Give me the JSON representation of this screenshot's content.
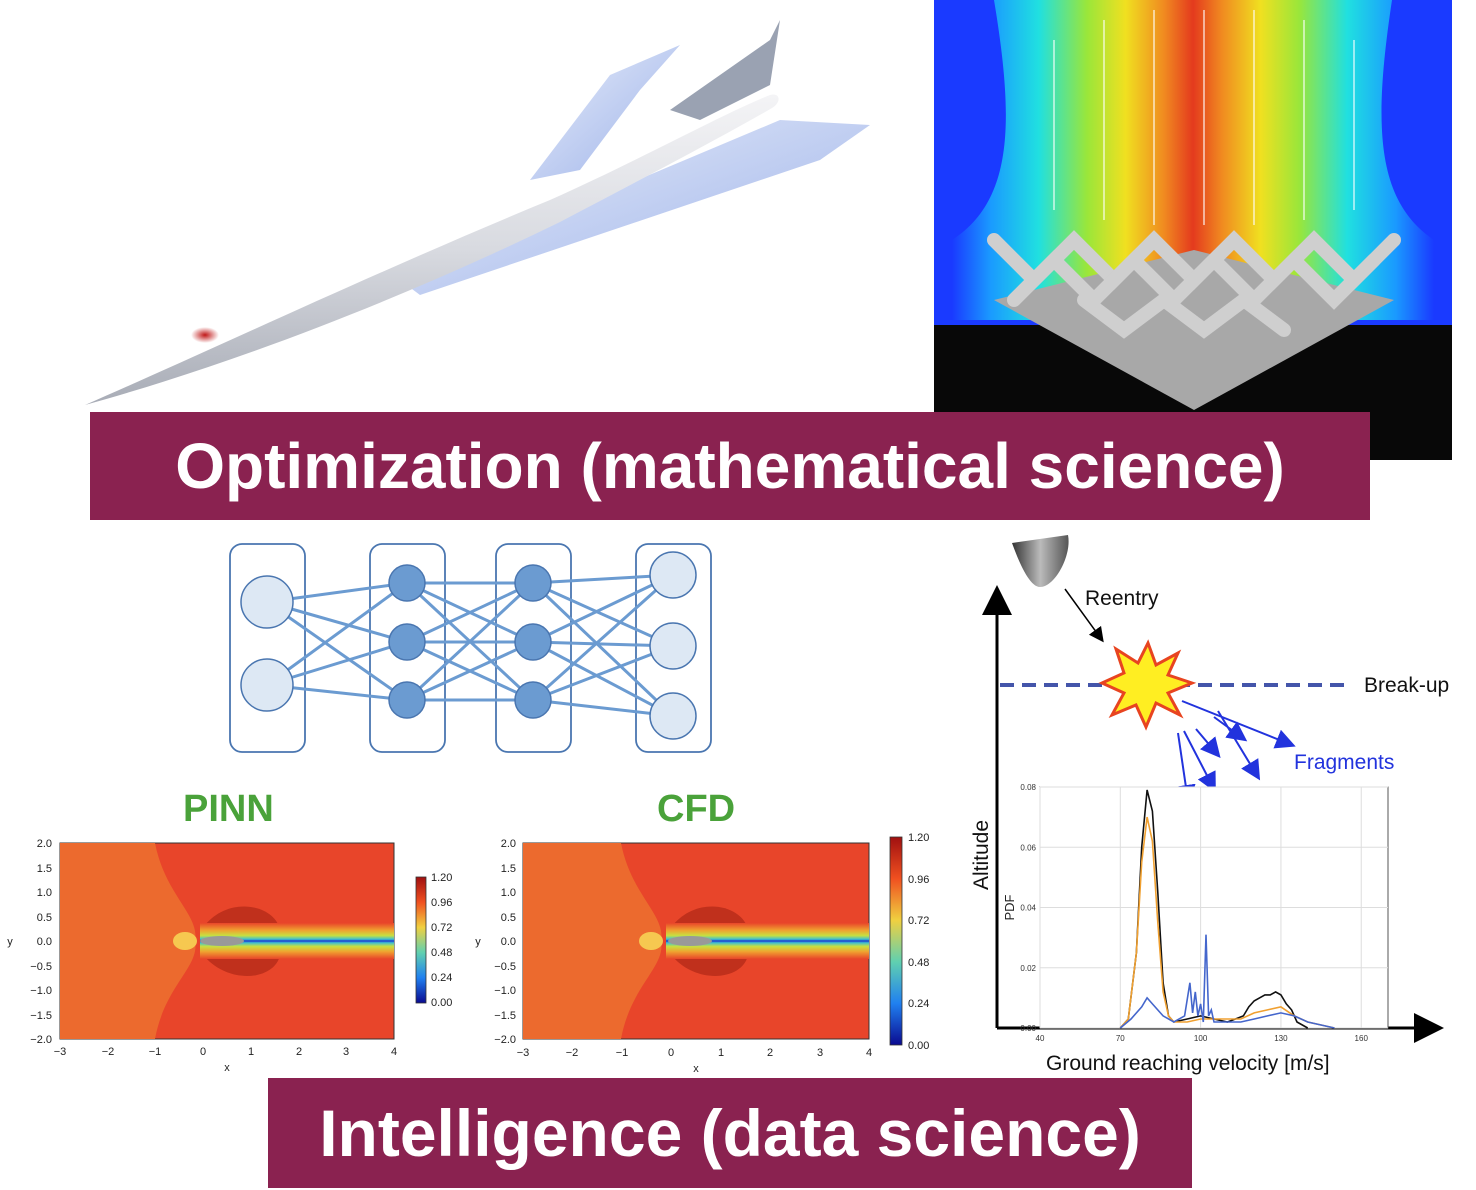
{
  "banners": {
    "optimization": "Optimization (mathematical science)",
    "intelligence": "Intelligence (data science)"
  },
  "colors": {
    "banner": "#8a2250",
    "plot_title": "#4aa23a",
    "network_node": "#6b9bd1",
    "network_input": "#dde8f4",
    "fragments": "#2233dd"
  },
  "pinn_panel": {
    "title": "PINN",
    "xlabel": "x",
    "ylabel": "y",
    "x_ticks": [
      "−3",
      "−2",
      "−1",
      "0",
      "1",
      "2",
      "3",
      "4"
    ],
    "y_ticks": [
      "2.0",
      "1.5",
      "1.0",
      "0.5",
      "0.0",
      "−0.5",
      "−1.0",
      "−1.5",
      "−2.0"
    ],
    "colorbar_ticks": [
      "1.20",
      "0.96",
      "0.72",
      "0.48",
      "0.24",
      "0.00"
    ]
  },
  "cfd_panel": {
    "title": "CFD",
    "xlabel": "x",
    "ylabel": "y",
    "x_ticks": [
      "−3",
      "−2",
      "−1",
      "0",
      "1",
      "2",
      "3",
      "4"
    ],
    "y_ticks": [
      "2.0",
      "1.5",
      "1.0",
      "0.5",
      "0.0",
      "−0.5",
      "−1.0",
      "−1.5",
      "−2.0"
    ],
    "colorbar_ticks": [
      "1.20",
      "0.96",
      "0.72",
      "0.48",
      "0.24",
      "0.00"
    ]
  },
  "reentry": {
    "reentry_label": "Reentry",
    "breakup_label": "Break-up",
    "fragments_label": "Fragments",
    "altitude_label": "Altitude",
    "velocity_label": "Ground reaching velocity [m/s]"
  },
  "chart_data": {
    "type": "line",
    "xlabel": "Ground reaching velocity [m/s]",
    "ylabel": "PDF",
    "x_ticks": [
      "40",
      "70",
      "100",
      "130",
      "160"
    ],
    "y_ticks": [
      "0.00",
      "0.02",
      "0.04",
      "0.06",
      "0.08"
    ],
    "xlim": [
      40,
      170
    ],
    "ylim": [
      0,
      0.08
    ],
    "grid": true,
    "series": [
      {
        "color": "#111111",
        "x": [
          70,
          73,
          76,
          78,
          80,
          82,
          84,
          86,
          88,
          90,
          95,
          100,
          105,
          110,
          113,
          116,
          118,
          120,
          122,
          124,
          126,
          128,
          130,
          132,
          134,
          136,
          140
        ],
        "y": [
          0.0,
          0.003,
          0.025,
          0.06,
          0.079,
          0.072,
          0.045,
          0.015,
          0.004,
          0.002,
          0.003,
          0.004,
          0.003,
          0.002,
          0.003,
          0.004,
          0.007,
          0.009,
          0.01,
          0.011,
          0.011,
          0.012,
          0.011,
          0.008,
          0.006,
          0.002,
          0.0
        ]
      },
      {
        "color": "#f0a030",
        "x": [
          70,
          73,
          76,
          78,
          80,
          82,
          84,
          86,
          88,
          90,
          95,
          100,
          105,
          110,
          115,
          120,
          125,
          130,
          135,
          140,
          150
        ],
        "y": [
          0.0,
          0.003,
          0.025,
          0.055,
          0.07,
          0.062,
          0.035,
          0.012,
          0.004,
          0.002,
          0.002,
          0.003,
          0.003,
          0.003,
          0.003,
          0.005,
          0.006,
          0.007,
          0.004,
          0.002,
          0.0
        ]
      },
      {
        "color": "#4466cc",
        "x": [
          70,
          74,
          78,
          80,
          82,
          86,
          90,
          94,
          96,
          97,
          98,
          99,
          100,
          101,
          102,
          103,
          104,
          105,
          106,
          110,
          115,
          120,
          125,
          130,
          135,
          140,
          150
        ],
        "y": [
          0.0,
          0.003,
          0.007,
          0.01,
          0.008,
          0.004,
          0.002,
          0.004,
          0.015,
          0.005,
          0.012,
          0.004,
          0.008,
          0.002,
          0.031,
          0.004,
          0.006,
          0.002,
          0.002,
          0.002,
          0.002,
          0.003,
          0.004,
          0.005,
          0.004,
          0.002,
          0.0
        ]
      }
    ]
  }
}
